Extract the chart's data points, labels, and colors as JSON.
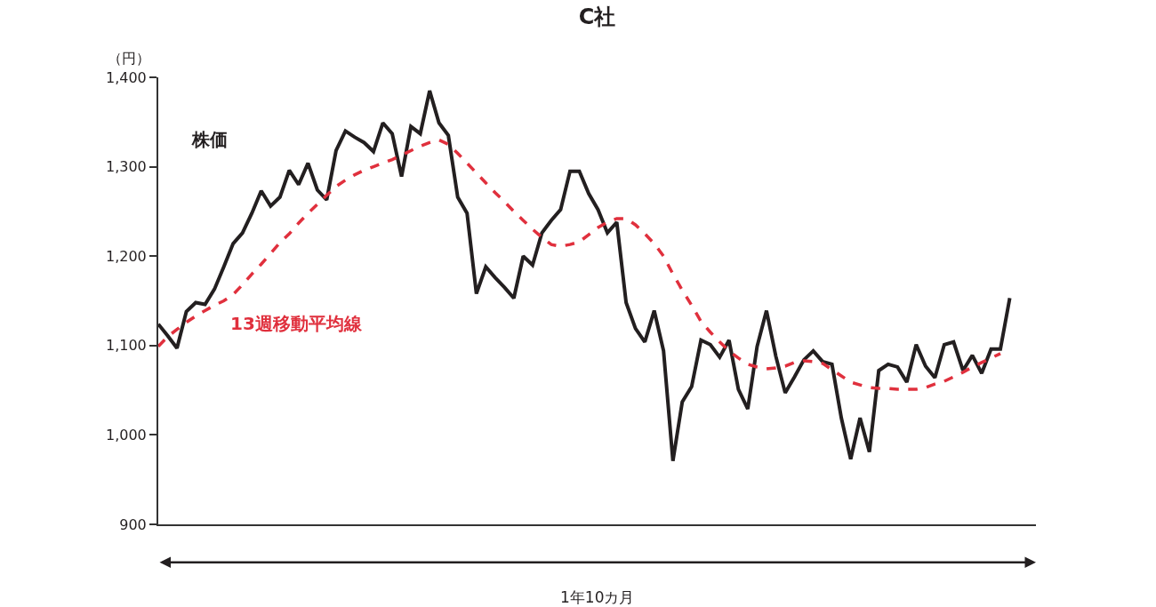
{
  "chart_data": {
    "type": "line",
    "title": "C社",
    "ylabel": "（円）",
    "xlabel": "1年10カ月",
    "categories": [
      null,
      null,
      null,
      null,
      null,
      null,
      null,
      null,
      null,
      null,
      null,
      null,
      null,
      null,
      null,
      null,
      null,
      null,
      null,
      null,
      null,
      null,
      null,
      null,
      null,
      null,
      null,
      null,
      null,
      null,
      null,
      null,
      null,
      null,
      null,
      null,
      null,
      null,
      null,
      null,
      null,
      null,
      null,
      null,
      null,
      null,
      null,
      null,
      null,
      null,
      null,
      null,
      null,
      null,
      null,
      null,
      null,
      null,
      null,
      null,
      null,
      null,
      null,
      null,
      null,
      null,
      null,
      null,
      null,
      null,
      null,
      null,
      null,
      null,
      null,
      null,
      null,
      null,
      null,
      null,
      null,
      null,
      null,
      null,
      null,
      null,
      null,
      null,
      null,
      null,
      null,
      null
    ],
    "series": [
      {
        "name": "株価",
        "color": "#231f20",
        "line_style": "solid",
        "values": [
          1124,
          1111,
          1097,
          1138,
          1148,
          1146,
          1163,
          1188,
          1214,
          1226,
          1248,
          1273,
          1256,
          1266,
          1296,
          1280,
          1304,
          1274,
          1263,
          1318,
          1340,
          1333,
          1327,
          1317,
          1349,
          1337,
          1289,
          1345,
          1337,
          1385,
          1349,
          1335,
          1266,
          1248,
          1158,
          1188,
          1176,
          1165,
          1153,
          1200,
          1190,
          1226,
          1240,
          1252,
          1295,
          1295,
          1270,
          1252,
          1226,
          1238,
          1148,
          1119,
          1104,
          1139,
          1094,
          971,
          1037,
          1054,
          1106,
          1101,
          1087,
          1106,
          1051,
          1029,
          1099,
          1139,
          1088,
          1047,
          1065,
          1084,
          1094,
          1082,
          1079,
          1019,
          973,
          1019,
          981,
          1072,
          1079,
          1076,
          1059,
          1101,
          1077,
          1064,
          1101,
          1104,
          1072,
          1089,
          1069,
          1096,
          1096,
          1153
        ]
      },
      {
        "name": "13週移動平均線",
        "color": "#e0303d",
        "line_style": "dashed",
        "values": [
          1099,
          1110,
          1118,
          1126,
          1133,
          1139,
          1145,
          1150,
          1157,
          1168,
          1180,
          1191,
          1203,
          1215,
          1225,
          1237,
          1248,
          1258,
          1268,
          1278,
          1285,
          1291,
          1296,
          1300,
          1304,
          1308,
          1313,
          1318,
          1323,
          1327,
          1330,
          1325,
          1315,
          1304,
          1293,
          1282,
          1271,
          1261,
          1250,
          1240,
          1230,
          1221,
          1213,
          1211,
          1213,
          1216,
          1224,
          1232,
          1238,
          1242,
          1242,
          1235,
          1225,
          1214,
          1200,
          1180,
          1162,
          1145,
          1127,
          1115,
          1104,
          1094,
          1086,
          1079,
          1076,
          1074,
          1075,
          1077,
          1081,
          1083,
          1082,
          1080,
          1073,
          1066,
          1059,
          1056,
          1053,
          1052,
          1052,
          1051,
          1051,
          1051,
          1053,
          1057,
          1060,
          1065,
          1070,
          1076,
          1081,
          1086,
          1091,
          null
        ]
      }
    ],
    "ylim": [
      900,
      1400
    ],
    "yticks": [
      {
        "value": 900,
        "label": "900"
      },
      {
        "value": 1000,
        "label": "1,000"
      },
      {
        "value": 1100,
        "label": "1,100"
      },
      {
        "value": 1200,
        "label": "1,200"
      },
      {
        "value": 1300,
        "label": "1,300"
      },
      {
        "value": 1400,
        "label": "1,400"
      }
    ],
    "tick_labels": "y",
    "legend": false,
    "marker": "none"
  }
}
